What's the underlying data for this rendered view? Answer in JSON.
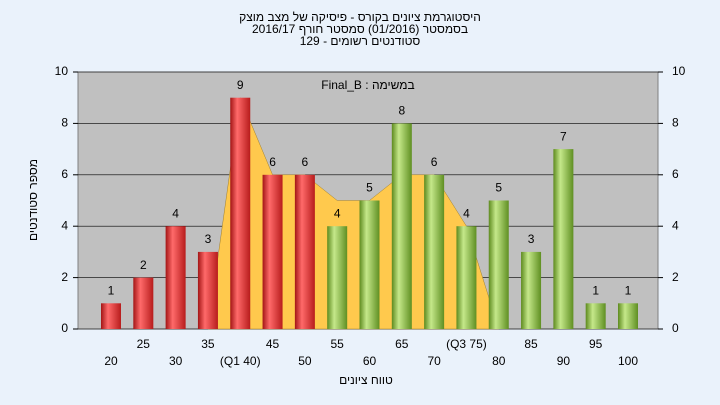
{
  "chart_data": {
    "type": "bar",
    "title": "היסטוגרמת ציונים בקורס - פיסיקה של מצב מוצק",
    "subtitle": "בסמסטר (01/2016) סמסטר חורף 2016/17",
    "subtitle2": "סטודנטים רשומים - 129",
    "annotation": "במשימה : Final_B",
    "x_label": "טווח ציונים",
    "y_label": "מספר סטודנטים",
    "categories": [
      "20",
      "25",
      "30",
      "35",
      "(Q1 40)",
      "45",
      "50",
      "55",
      "60",
      "65",
      "70",
      "(Q3 75)",
      "80",
      "85",
      "90",
      "95",
      "100"
    ],
    "series": [
      {
        "color": "#e53935",
        "values": [
          1,
          2,
          4,
          3,
          9,
          6,
          6,
          null,
          null,
          null,
          null,
          null,
          null,
          null,
          null,
          null,
          null
        ]
      },
      {
        "color": "#8bc34a",
        "values": [
          null,
          null,
          null,
          null,
          null,
          null,
          null,
          4,
          5,
          8,
          6,
          4,
          5,
          3,
          7,
          1,
          1
        ]
      }
    ],
    "area": {
      "color": "#ffc94d",
      "values": [
        null,
        null,
        null,
        0,
        9,
        6,
        6,
        5,
        5,
        6,
        6,
        4,
        0,
        null,
        null,
        null,
        null
      ]
    },
    "ylim": [
      0,
      10
    ],
    "yticks": [
      0,
      2,
      4,
      6,
      8,
      10
    ],
    "y2lim": [
      0,
      10
    ],
    "y2ticks": [
      0,
      2,
      4,
      6,
      8,
      10
    ],
    "grid": true
  }
}
